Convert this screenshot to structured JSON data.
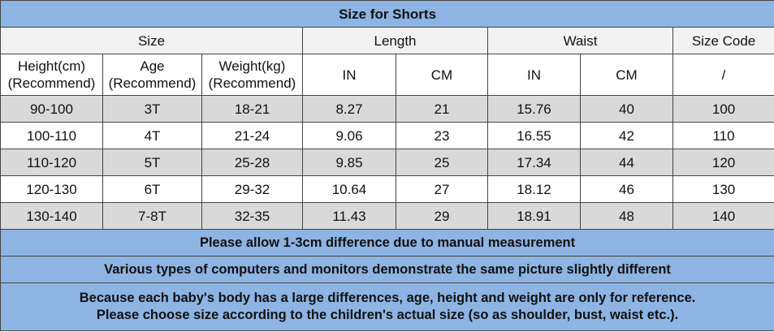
{
  "title": "Size for Shorts",
  "header": {
    "groups": [
      "Size",
      "Length",
      "Waist",
      "Size Code"
    ],
    "columns": [
      [
        "Height(cm)",
        "(Recommend)"
      ],
      [
        "Age",
        "(Recommend)"
      ],
      [
        "Weight(kg)",
        "(Recommend)"
      ],
      [
        "IN"
      ],
      [
        "CM"
      ],
      [
        "IN"
      ],
      [
        "CM"
      ],
      [
        "/"
      ]
    ]
  },
  "rows": [
    [
      "90-100",
      "3T",
      "18-21",
      "8.27",
      "21",
      "15.76",
      "40",
      "100"
    ],
    [
      "100-110",
      "4T",
      "21-24",
      "9.06",
      "23",
      "16.55",
      "42",
      "110"
    ],
    [
      "110-120",
      "5T",
      "25-28",
      "9.85",
      "25",
      "17.34",
      "44",
      "120"
    ],
    [
      "120-130",
      "6T",
      "29-32",
      "10.64",
      "27",
      "18.12",
      "46",
      "130"
    ],
    [
      "130-140",
      "7-8T",
      "32-35",
      "11.43",
      "29",
      "18.91",
      "48",
      "140"
    ]
  ],
  "notes": [
    [
      "Please allow 1-3cm difference due to manual measurement"
    ],
    [
      "Various types of computers and monitors demonstrate the same picture slightly  different"
    ],
    [
      "Because each baby's body has a large differences, age, height and weight are only for reference.",
      "Please choose size according to the children's actual size (so as shoulder, bust, waist etc.)."
    ]
  ]
}
